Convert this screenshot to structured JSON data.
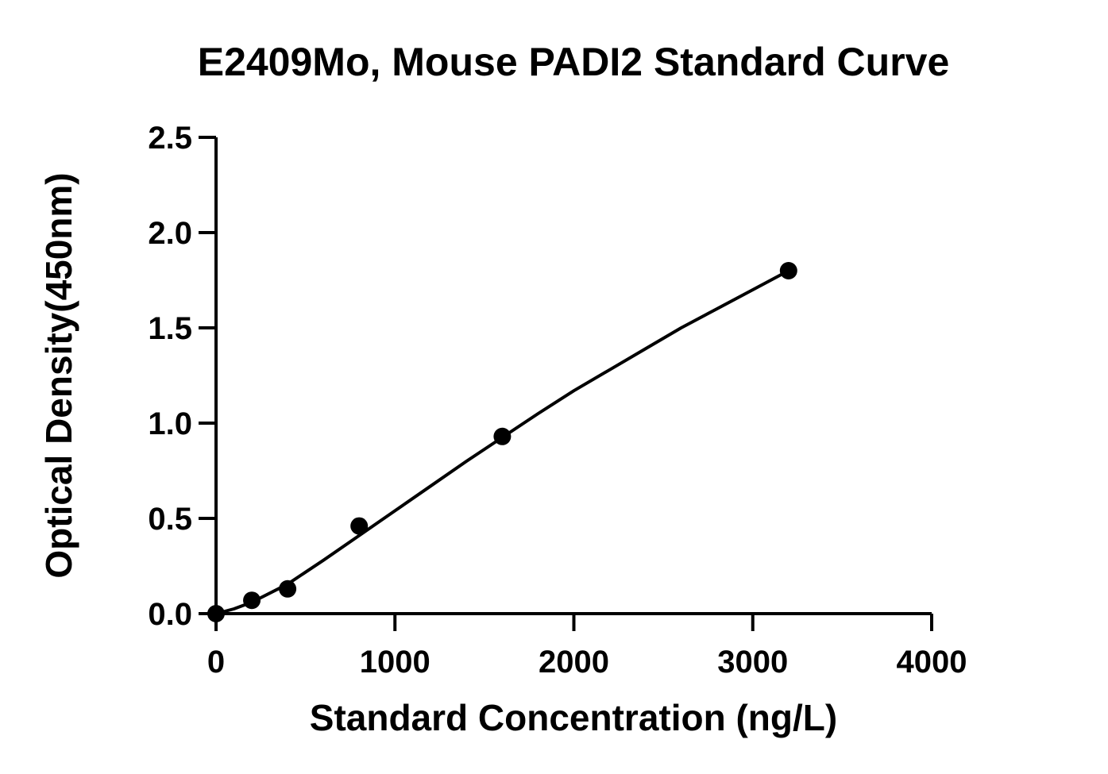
{
  "chart_data": {
    "type": "scatter",
    "title": "E2409Mo, Mouse PADI2 Standard Curve",
    "xlabel": "Standard Concentration (ng/L)",
    "ylabel": "Optical Density(450nm)",
    "xlim": [
      0,
      4000
    ],
    "ylim": [
      0,
      2.5
    ],
    "x_ticks": [
      0,
      1000,
      2000,
      3000,
      4000
    ],
    "x_tick_labels": [
      "0",
      "1000",
      "2000",
      "3000",
      "4000"
    ],
    "y_ticks": [
      0,
      0.5,
      1.0,
      1.5,
      2.0,
      2.5
    ],
    "y_tick_labels": [
      "0.0",
      "0.5",
      "1.0",
      "1.5",
      "2.0",
      "2.5"
    ],
    "grid": false,
    "series": [
      {
        "x": [
          0,
          200,
          400,
          800,
          1600,
          3200
        ],
        "y": [
          0.0,
          0.07,
          0.13,
          0.46,
          0.93,
          1.8
        ]
      }
    ],
    "fit_curve": {
      "x": [
        0,
        100,
        200,
        400,
        600,
        800,
        1000,
        1200,
        1400,
        1600,
        1800,
        2000,
        2200,
        2400,
        2600,
        2800,
        3000,
        3200
      ],
      "y": [
        0.0,
        0.025,
        0.06,
        0.155,
        0.28,
        0.41,
        0.54,
        0.67,
        0.8,
        0.925,
        1.05,
        1.17,
        1.28,
        1.39,
        1.5,
        1.6,
        1.7,
        1.8
      ]
    },
    "colors": {
      "marker": "#000000",
      "line": "#000000",
      "axis": "#000000"
    }
  }
}
